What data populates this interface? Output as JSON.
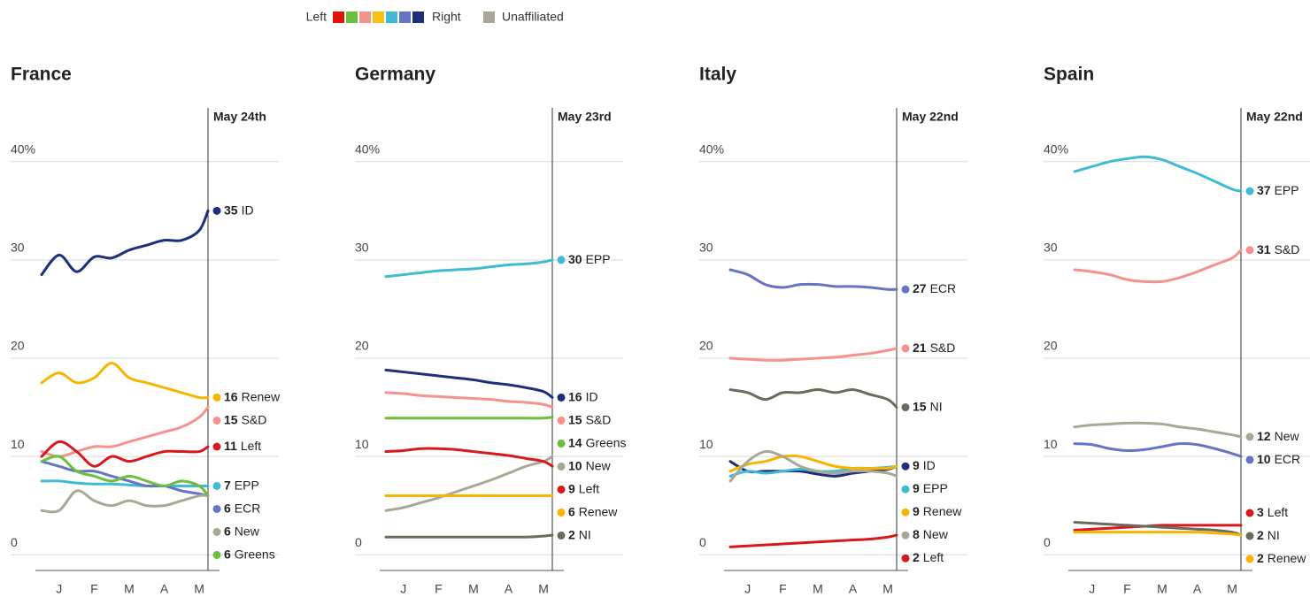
{
  "legend": {
    "left": "Left",
    "right": "Right",
    "unaffiliated": "Unaffiliated",
    "scale": [
      "#e3120b",
      "#6abf3f",
      "#f4928e",
      "#f7c014",
      "#3fbcd4",
      "#6574c4",
      "#1f2e7a"
    ],
    "unaffiliated_color": "#aba697"
  },
  "chart_data": [
    {
      "type": "line",
      "title": "France",
      "date": "May 24th",
      "x": [
        0,
        0.5,
        1,
        1.5,
        2,
        2.5,
        3,
        3.5,
        4,
        4.5,
        4.75
      ],
      "xlim": [
        0,
        4.75
      ],
      "xticks": [
        {
          "value": 0.5,
          "label": "J"
        },
        {
          "value": 1.5,
          "label": "F"
        },
        {
          "value": 2.5,
          "label": "M"
        },
        {
          "value": 3.5,
          "label": "A"
        },
        {
          "value": 4.5,
          "label": "M"
        }
      ],
      "ylim": [
        -1.6,
        45.2
      ],
      "yticks": [
        0,
        10,
        20,
        30,
        {
          "value": 40,
          "label": "40%"
        }
      ],
      "grid": true,
      "series": [
        {
          "name": "ID",
          "color": "#1f2e7a",
          "values": [
            28.5,
            30.5,
            28.8,
            30.3,
            30.2,
            31,
            31.5,
            32,
            32,
            33,
            35
          ]
        },
        {
          "name": "Renew",
          "color": "#f7b500",
          "values": [
            17.5,
            18.5,
            17.5,
            18,
            19.5,
            18,
            17.5,
            17,
            16.5,
            16,
            16
          ]
        },
        {
          "name": "S&D",
          "color": "#f4928e",
          "values": [
            10.5,
            10,
            10.5,
            11,
            11,
            11.5,
            12,
            12.5,
            13,
            14,
            15
          ]
        },
        {
          "name": "Left",
          "color": "#d7191c",
          "values": [
            10,
            11.5,
            10.5,
            9,
            10,
            9.5,
            10,
            10.5,
            10.5,
            10.5,
            11
          ]
        },
        {
          "name": "EPP",
          "color": "#3fbcd4",
          "values": [
            7.5,
            7.5,
            7.3,
            7.2,
            7.2,
            7.1,
            7,
            7,
            7,
            7,
            7
          ]
        },
        {
          "name": "ECR",
          "color": "#6574c4",
          "values": [
            9.5,
            9,
            8.5,
            8.5,
            8,
            7.5,
            7,
            7,
            6.5,
            6.2,
            6
          ]
        },
        {
          "name": "New",
          "color": "#aaa797",
          "values": [
            4.5,
            4.5,
            6.5,
            5.5,
            5,
            5.5,
            5,
            5,
            5.5,
            6,
            6
          ]
        },
        {
          "name": "Greens",
          "color": "#6abf3f",
          "values": [
            9.5,
            10,
            8.5,
            8,
            7.5,
            8,
            7.5,
            7,
            7.5,
            7,
            6
          ]
        }
      ]
    },
    {
      "type": "line",
      "title": "Germany",
      "date": "May 23rd",
      "x": [
        0,
        0.5,
        1,
        1.5,
        2,
        2.5,
        3,
        3.5,
        4,
        4.5,
        4.75
      ],
      "xlim": [
        0,
        4.75
      ],
      "xticks": [
        {
          "value": 0.5,
          "label": "J"
        },
        {
          "value": 1.5,
          "label": "F"
        },
        {
          "value": 2.5,
          "label": "M"
        },
        {
          "value": 3.5,
          "label": "A"
        },
        {
          "value": 4.5,
          "label": "M"
        }
      ],
      "ylim": [
        -1.6,
        45.2
      ],
      "yticks": [
        0,
        10,
        20,
        30,
        {
          "value": 40,
          "label": "40%"
        }
      ],
      "grid": true,
      "series": [
        {
          "name": "EPP",
          "color": "#3fbcd4",
          "values": [
            28.3,
            28.5,
            28.7,
            28.9,
            29,
            29.1,
            29.3,
            29.5,
            29.6,
            29.8,
            30
          ]
        },
        {
          "name": "ID",
          "color": "#1f2e7a",
          "values": [
            18.8,
            18.6,
            18.4,
            18.2,
            18,
            17.8,
            17.5,
            17.3,
            17,
            16.6,
            16
          ]
        },
        {
          "name": "S&D",
          "color": "#f4928e",
          "values": [
            16.5,
            16.4,
            16.2,
            16.1,
            16,
            15.9,
            15.8,
            15.6,
            15.5,
            15.3,
            15
          ]
        },
        {
          "name": "Greens",
          "color": "#6abf3f",
          "values": [
            13.9,
            13.9,
            13.9,
            13.9,
            13.9,
            13.9,
            13.9,
            13.9,
            13.9,
            13.9,
            14
          ]
        },
        {
          "name": "New",
          "color": "#aaa797",
          "values": [
            4.5,
            4.8,
            5.3,
            5.8,
            6.4,
            7,
            7.6,
            8.3,
            9,
            9.5,
            10
          ]
        },
        {
          "name": "Left",
          "color": "#d7191c",
          "values": [
            10.5,
            10.6,
            10.8,
            10.8,
            10.7,
            10.5,
            10.3,
            10.1,
            9.8,
            9.5,
            9
          ]
        },
        {
          "name": "Renew",
          "color": "#f7b500",
          "values": [
            6,
            6,
            6,
            6,
            6,
            6,
            6,
            6,
            6,
            6,
            6
          ]
        },
        {
          "name": "NI",
          "color": "#6b6a5c",
          "values": [
            1.8,
            1.8,
            1.8,
            1.8,
            1.8,
            1.8,
            1.8,
            1.8,
            1.8,
            1.9,
            2
          ]
        }
      ]
    },
    {
      "type": "line",
      "title": "Italy",
      "date": "May 22nd",
      "x": [
        0,
        0.5,
        1,
        1.5,
        2,
        2.5,
        3,
        3.5,
        4,
        4.5,
        4.75
      ],
      "xlim": [
        0,
        4.75
      ],
      "xticks": [
        {
          "value": 0.5,
          "label": "J"
        },
        {
          "value": 1.5,
          "label": "F"
        },
        {
          "value": 2.5,
          "label": "M"
        },
        {
          "value": 3.5,
          "label": "A"
        },
        {
          "value": 4.5,
          "label": "M"
        }
      ],
      "ylim": [
        -1.6,
        45.2
      ],
      "yticks": [
        0,
        10,
        20,
        30,
        {
          "value": 40,
          "label": "40%"
        }
      ],
      "grid": true,
      "series": [
        {
          "name": "ECR",
          "color": "#6574c4",
          "values": [
            29,
            28.5,
            27.5,
            27.2,
            27.5,
            27.5,
            27.3,
            27.3,
            27.2,
            27,
            27
          ]
        },
        {
          "name": "S&D",
          "color": "#f4928e",
          "values": [
            20,
            19.9,
            19.8,
            19.8,
            19.9,
            20,
            20.1,
            20.3,
            20.5,
            20.8,
            21
          ]
        },
        {
          "name": "NI",
          "color": "#6b6a5c",
          "values": [
            16.8,
            16.5,
            15.8,
            16.5,
            16.5,
            16.8,
            16.5,
            16.8,
            16.3,
            15.8,
            15
          ]
        },
        {
          "name": "ID",
          "color": "#1f2e7a",
          "values": [
            9.5,
            8.5,
            8.5,
            8.5,
            8.5,
            8.2,
            8,
            8.3,
            8.5,
            8.7,
            9
          ]
        },
        {
          "name": "EPP",
          "color": "#3fbcd4",
          "values": [
            8,
            8.5,
            8.3,
            8.5,
            8.7,
            8.5,
            8.5,
            8.8,
            8.8,
            8.9,
            9
          ]
        },
        {
          "name": "Renew",
          "color": "#f7b500",
          "values": [
            8.5,
            9.2,
            9.5,
            10,
            10,
            9.5,
            9,
            8.8,
            8.8,
            8.8,
            9
          ]
        },
        {
          "name": "New",
          "color": "#aaa797",
          "values": [
            7.5,
            9.5,
            10.5,
            10,
            9,
            8.5,
            8.3,
            8.5,
            8.5,
            8.3,
            8
          ]
        },
        {
          "name": "Left",
          "color": "#d7191c",
          "values": [
            0.8,
            0.9,
            1,
            1.1,
            1.2,
            1.3,
            1.4,
            1.5,
            1.6,
            1.8,
            2
          ]
        }
      ]
    },
    {
      "type": "line",
      "title": "Spain",
      "date": "May 22nd",
      "x": [
        0,
        0.5,
        1,
        1.5,
        2,
        2.5,
        3,
        3.5,
        4,
        4.5,
        4.75
      ],
      "xlim": [
        0,
        4.75
      ],
      "xticks": [
        {
          "value": 0.5,
          "label": "J"
        },
        {
          "value": 1.5,
          "label": "F"
        },
        {
          "value": 2.5,
          "label": "M"
        },
        {
          "value": 3.5,
          "label": "A"
        },
        {
          "value": 4.5,
          "label": "M"
        }
      ],
      "ylim": [
        -1.6,
        45.2
      ],
      "yticks": [
        0,
        10,
        20,
        30,
        {
          "value": 40,
          "label": "40%"
        }
      ],
      "grid": true,
      "series": [
        {
          "name": "EPP",
          "color": "#3fbcd4",
          "values": [
            39,
            39.5,
            40,
            40.3,
            40.5,
            40.2,
            39.5,
            38.8,
            38,
            37.2,
            37
          ]
        },
        {
          "name": "S&D",
          "color": "#f4928e",
          "values": [
            29,
            28.8,
            28.5,
            28,
            27.8,
            27.8,
            28.2,
            28.8,
            29.5,
            30.2,
            31
          ]
        },
        {
          "name": "New",
          "color": "#aaa797",
          "values": [
            13,
            13.2,
            13.3,
            13.4,
            13.4,
            13.3,
            13,
            12.8,
            12.5,
            12.2,
            12
          ]
        },
        {
          "name": "ECR",
          "color": "#6574c4",
          "values": [
            11.3,
            11.2,
            10.8,
            10.6,
            10.7,
            11,
            11.3,
            11.2,
            10.8,
            10.3,
            10
          ]
        },
        {
          "name": "Left",
          "color": "#d7191c",
          "values": [
            2.5,
            2.6,
            2.7,
            2.8,
            2.9,
            3,
            3,
            3,
            3,
            3,
            3
          ]
        },
        {
          "name": "NI",
          "color": "#6b6a5c",
          "values": [
            3.3,
            3.2,
            3.1,
            3,
            2.9,
            2.8,
            2.7,
            2.6,
            2.5,
            2.3,
            2
          ]
        },
        {
          "name": "Renew",
          "color": "#f7b500",
          "values": [
            2.3,
            2.3,
            2.3,
            2.3,
            2.3,
            2.3,
            2.3,
            2.3,
            2.2,
            2.1,
            2
          ]
        }
      ]
    }
  ]
}
